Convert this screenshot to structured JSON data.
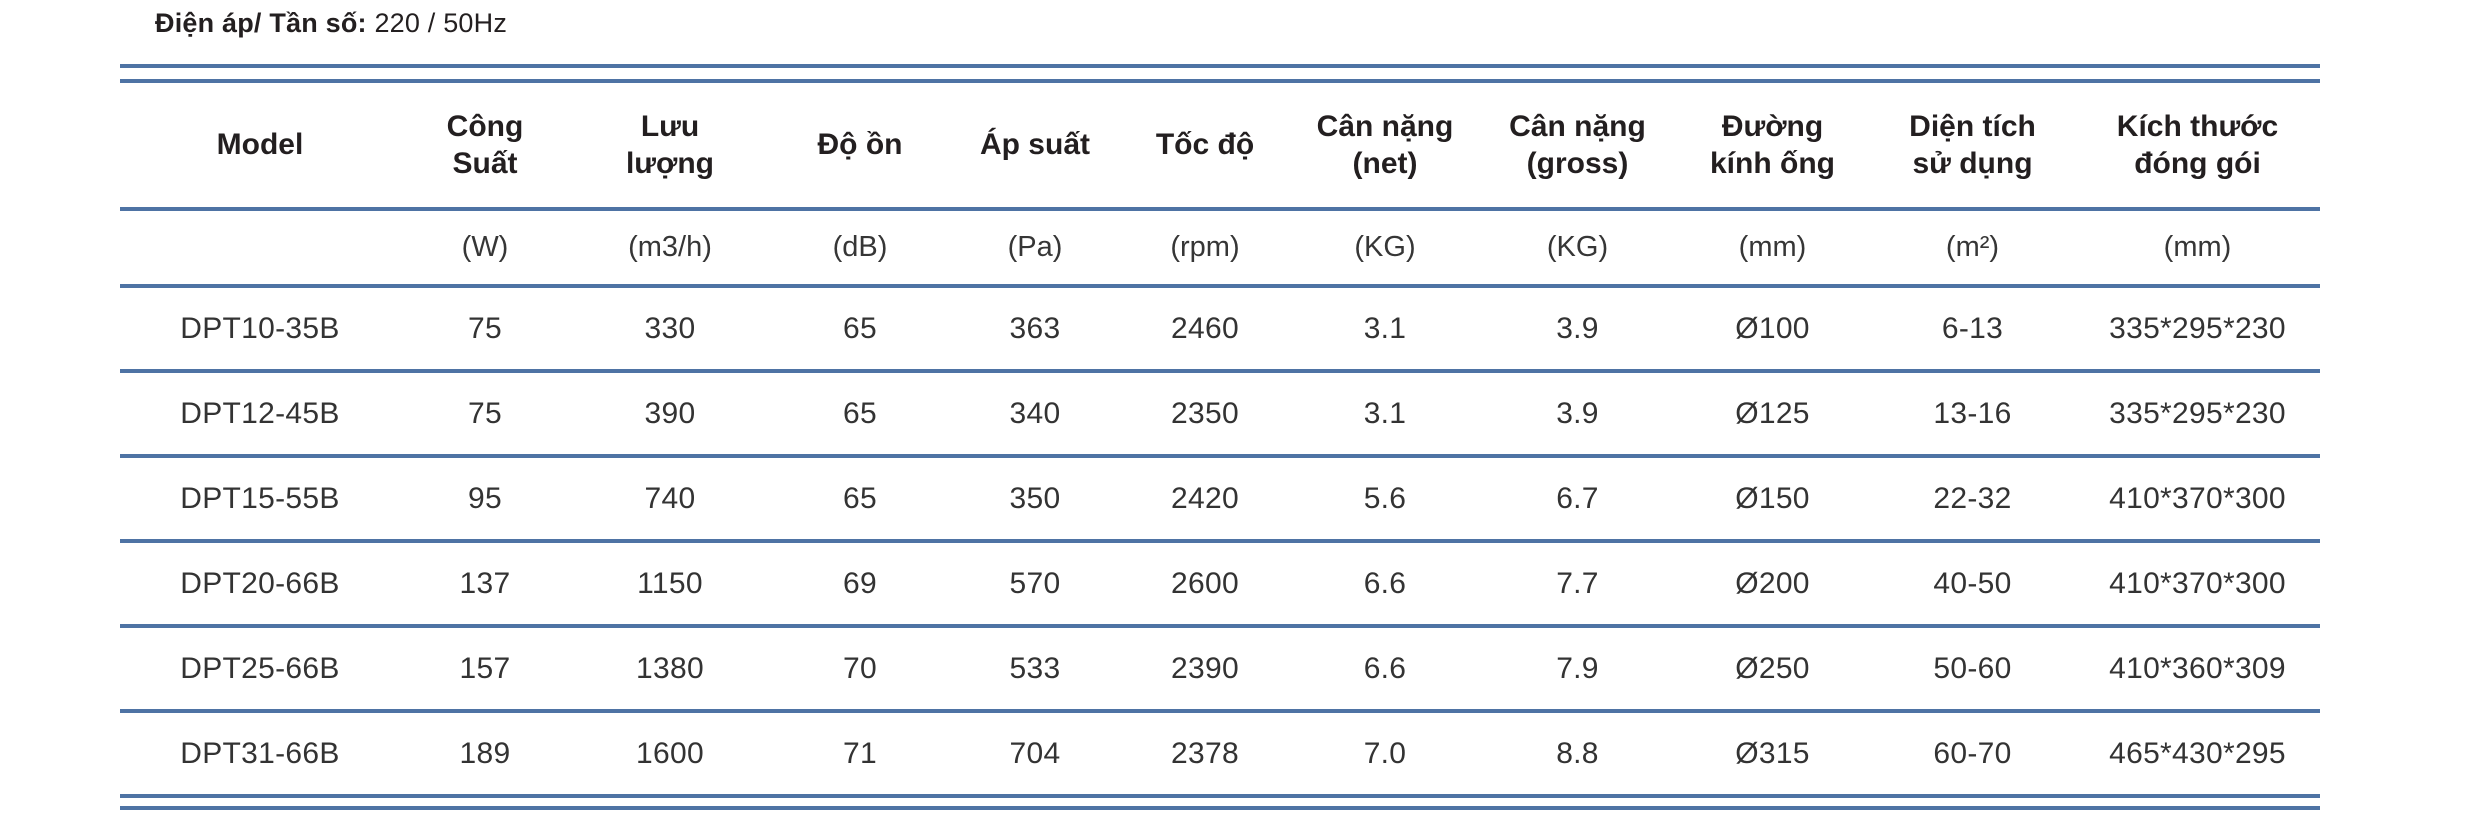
{
  "header": {
    "label": "Điện áp/ Tần số:",
    "value": "220 / 50Hz"
  },
  "table": {
    "accent_color": "#4e73a4",
    "columns": [
      {
        "label": "Model",
        "unit": ""
      },
      {
        "label": "Công\nSuất",
        "unit": "(W)"
      },
      {
        "label": "Lưu\nlượng",
        "unit": "(m3/h)"
      },
      {
        "label": "Độ ồn",
        "unit": "(dB)"
      },
      {
        "label": "Áp suất",
        "unit": "(Pa)"
      },
      {
        "label": "Tốc độ",
        "unit": "(rpm)"
      },
      {
        "label": "Cân nặng\n(net)",
        "unit": "(KG)"
      },
      {
        "label": "Cân nặng\n(gross)",
        "unit": "(KG)"
      },
      {
        "label": "Đường\nkính ống",
        "unit": "(mm)"
      },
      {
        "label": "Diện tích\nsử dụng",
        "unit": "(m²)"
      },
      {
        "label": "Kích thước\nđóng gói",
        "unit": "(mm)"
      }
    ],
    "rows": [
      [
        "DPT10-35B",
        "75",
        "330",
        "65",
        "363",
        "2460",
        "3.1",
        "3.9",
        "Ø100",
        "6-13",
        "335*295*230"
      ],
      [
        "DPT12-45B",
        "75",
        "390",
        "65",
        "340",
        "2350",
        "3.1",
        "3.9",
        "Ø125",
        "13-16",
        "335*295*230"
      ],
      [
        "DPT15-55B",
        "95",
        "740",
        "65",
        "350",
        "2420",
        "5.6",
        "6.7",
        "Ø150",
        "22-32",
        "410*370*300"
      ],
      [
        "DPT20-66B",
        "137",
        "1150",
        "69",
        "570",
        "2600",
        "6.6",
        "7.7",
        "Ø200",
        "40-50",
        "410*370*300"
      ],
      [
        "DPT25-66B",
        "157",
        "1380",
        "70",
        "533",
        "2390",
        "6.6",
        "7.9",
        "Ø250",
        "50-60",
        "410*360*309"
      ],
      [
        "DPT31-66B",
        "189",
        "1600",
        "71",
        "704",
        "2378",
        "7.0",
        "8.8",
        "Ø315",
        "60-70",
        "465*430*295"
      ]
    ]
  }
}
